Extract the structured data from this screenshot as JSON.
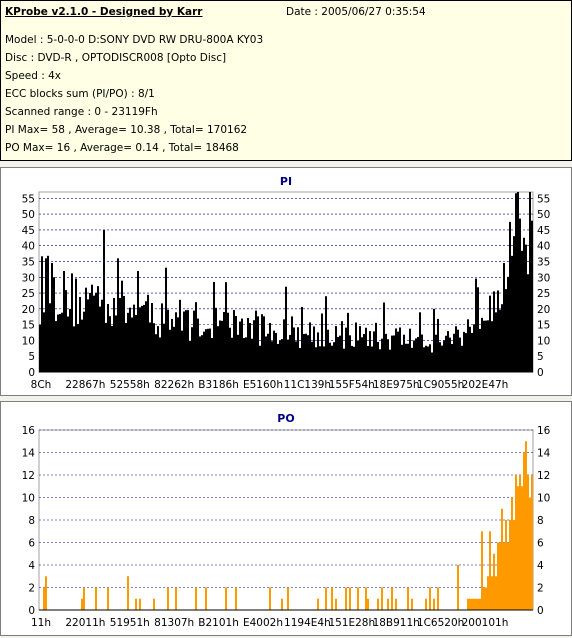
{
  "header": {
    "title": "KProbe v2.1.0 - Designed by Karr",
    "date": "Date : 2005/06/27 0:35:54",
    "lines": [
      "Model : 5-0-0-0 D:SONY    DVD RW DRU-800A  KY03",
      "Disc : DVD-R , OPTODISCR008 [Opto Disc]",
      "Speed : 4x",
      "ECC blocks sum (PI/PO) : 8/1",
      "Scanned range : 0 - 23119Fh",
      "PI Max= 58 , Average= 10.38 , Total= 170162",
      "PO Max= 16 , Average= 0.14 , Total= 18468"
    ]
  },
  "colors": {
    "pi_bars": "#000000",
    "po_bars": "#ff9900",
    "grid": "#000080",
    "title": "#000080",
    "panel_bg": "#ffffff",
    "header_bg": "#ffffe6"
  },
  "chart_data": [
    {
      "type": "bar",
      "title": "PI",
      "xlabel": "",
      "ylabel": "",
      "ylim": [
        0,
        57
      ],
      "y_ticks": [
        0,
        5,
        10,
        15,
        20,
        25,
        30,
        35,
        40,
        45,
        50,
        55
      ],
      "x_tick_labels": [
        "8Ch",
        "22867h",
        "52558h",
        "82262h",
        "B3186h",
        "E5160h",
        "11C139h",
        "155F54h",
        "18E975h",
        "1C9055h",
        "202E47h"
      ],
      "grid": true,
      "x_range": "0 - 23119Fh",
      "profile": [
        [
          0,
          24
        ],
        [
          0.01,
          34
        ],
        [
          0.04,
          26
        ],
        [
          0.08,
          24
        ],
        [
          0.12,
          26
        ],
        [
          0.2,
          20
        ],
        [
          0.3,
          18
        ],
        [
          0.4,
          16
        ],
        [
          0.5,
          14
        ],
        [
          0.6,
          13
        ],
        [
          0.7,
          12
        ],
        [
          0.8,
          11
        ],
        [
          0.84,
          12
        ],
        [
          0.87,
          15
        ],
        [
          0.9,
          24
        ],
        [
          0.94,
          35
        ],
        [
          0.97,
          45
        ],
        [
          1.0,
          55
        ]
      ],
      "spikes": [
        [
          0.011,
          36
        ],
        [
          0.03,
          30
        ],
        [
          0.13,
          45
        ],
        [
          0.16,
          36
        ],
        [
          0.2,
          32
        ],
        [
          0.5,
          27
        ],
        [
          0.58,
          24
        ],
        [
          0.7,
          22
        ],
        [
          0.8,
          20
        ],
        [
          0.995,
          58
        ]
      ],
      "max": 58,
      "average": 10.38,
      "total": 170162
    },
    {
      "type": "bar",
      "title": "PO",
      "xlabel": "",
      "ylabel": "",
      "ylim": [
        0,
        16
      ],
      "y_ticks": [
        0,
        2,
        4,
        6,
        8,
        10,
        12,
        14,
        16
      ],
      "x_tick_labels": [
        "11h",
        "22011h",
        "51951h",
        "81307h",
        "B2101h",
        "E4002h",
        "1194E4h",
        "151E28h",
        "18B911h",
        "1C6520h",
        "200101h"
      ],
      "grid": true,
      "x_range": "0 - 23119Fh",
      "profile": [
        [
          0,
          0
        ],
        [
          0.85,
          0
        ],
        [
          0.88,
          1
        ],
        [
          0.9,
          2
        ],
        [
          0.93,
          5
        ],
        [
          0.95,
          8
        ],
        [
          0.97,
          11
        ],
        [
          0.99,
          14
        ],
        [
          1.0,
          16
        ]
      ],
      "spikes": [
        [
          0.012,
          3
        ],
        [
          0.18,
          3
        ],
        [
          0.85,
          4
        ],
        [
          0.9,
          7
        ],
        [
          0.915,
          7
        ],
        [
          0.94,
          9
        ],
        [
          0.96,
          10
        ]
      ],
      "max": 16,
      "average": 0.14,
      "total": 18468
    }
  ]
}
